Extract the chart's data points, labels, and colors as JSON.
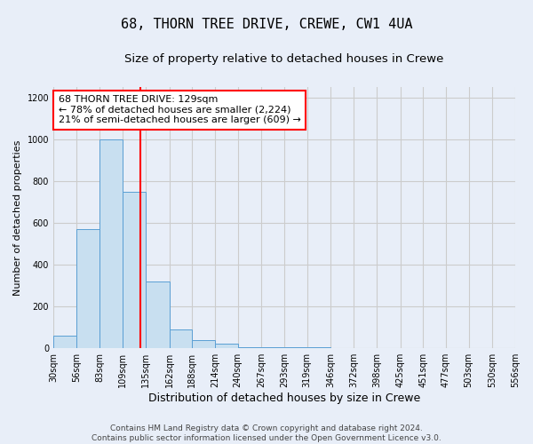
{
  "title": "68, THORN TREE DRIVE, CREWE, CW1 4UA",
  "subtitle": "Size of property relative to detached houses in Crewe",
  "xlabel": "Distribution of detached houses by size in Crewe",
  "ylabel": "Number of detached properties",
  "bin_edges": [
    30,
    56,
    83,
    109,
    135,
    162,
    188,
    214,
    240,
    267,
    293,
    319,
    346,
    372,
    398,
    425,
    451,
    477,
    503,
    530,
    556
  ],
  "bar_heights": [
    60,
    570,
    1000,
    750,
    320,
    90,
    40,
    20,
    5,
    5,
    5,
    5,
    0,
    0,
    0,
    0,
    0,
    0,
    0,
    0
  ],
  "bar_color": "#c8dff0",
  "bar_edgecolor": "#5a9fd4",
  "property_size": 129,
  "vline_color": "red",
  "annotation_text": "68 THORN TREE DRIVE: 129sqm\n← 78% of detached houses are smaller (2,224)\n21% of semi-detached houses are larger (609) →",
  "annotation_box_color": "white",
  "annotation_box_edgecolor": "red",
  "ylim": [
    0,
    1250
  ],
  "yticks": [
    0,
    200,
    400,
    600,
    800,
    1000,
    1200
  ],
  "footer_text": "Contains HM Land Registry data © Crown copyright and database right 2024.\nContains public sector information licensed under the Open Government Licence v3.0.",
  "background_color": "#e8eef8",
  "grid_color": "#cccccc",
  "title_fontsize": 11,
  "subtitle_fontsize": 9.5,
  "xlabel_fontsize": 9,
  "ylabel_fontsize": 8,
  "tick_fontsize": 7,
  "annotation_fontsize": 8,
  "footer_fontsize": 6.5
}
